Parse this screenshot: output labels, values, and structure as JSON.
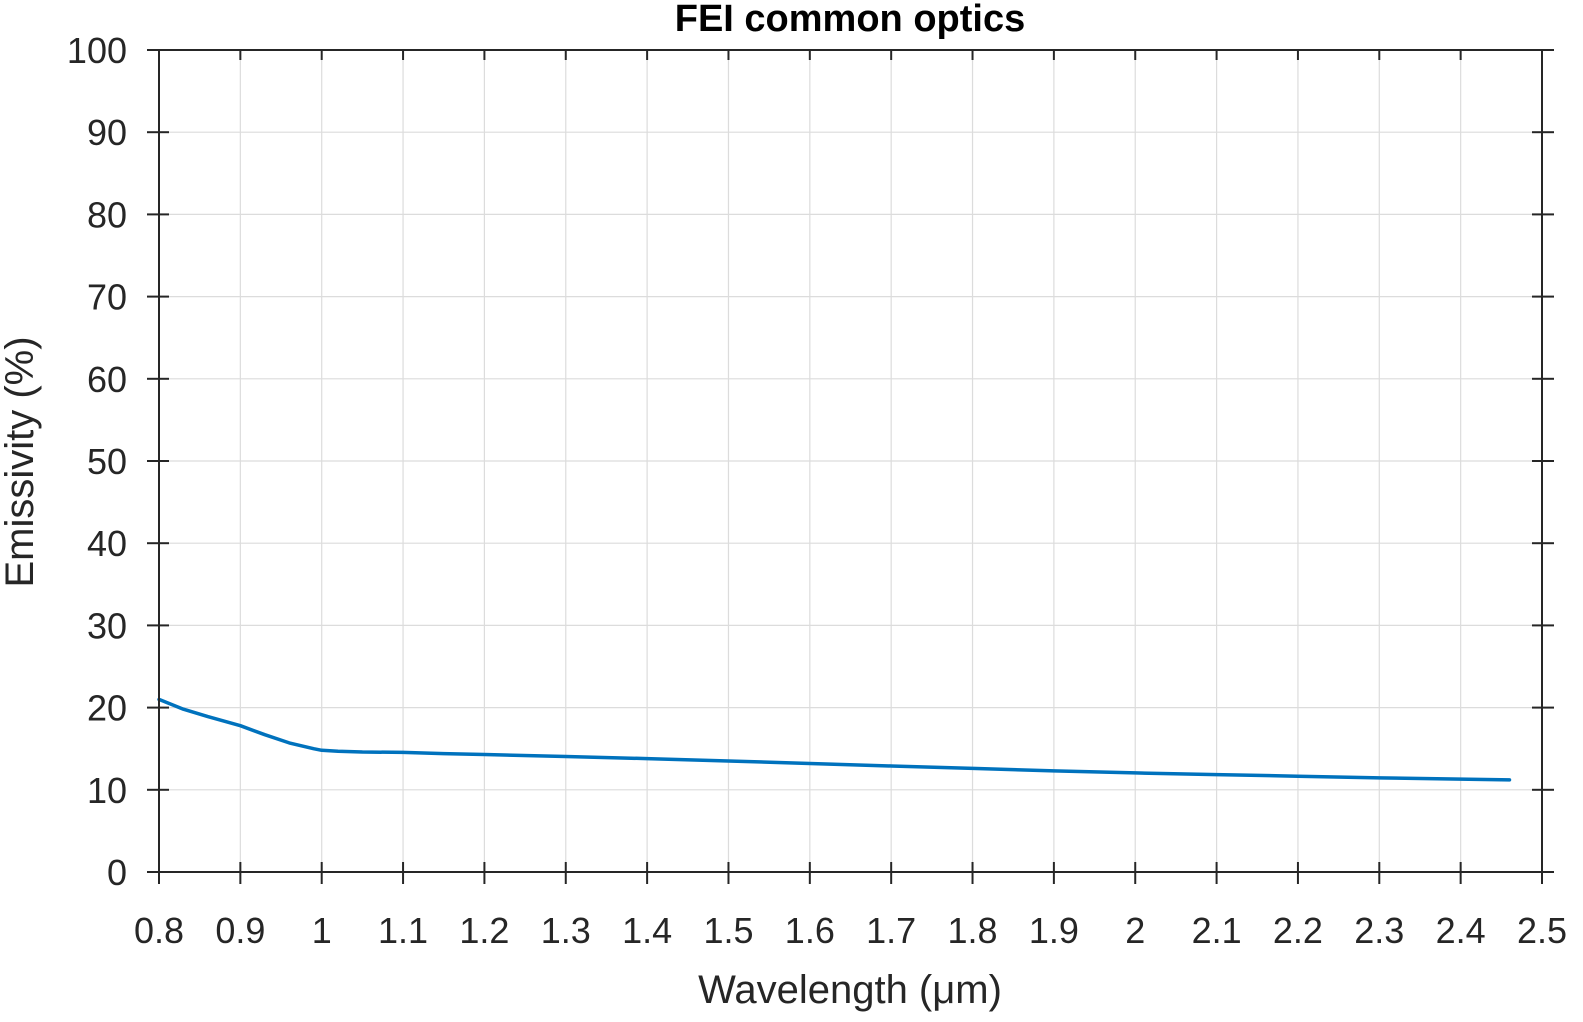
{
  "chart_data": {
    "type": "line",
    "title": "FEI common optics",
    "xlabel": "Wavelength (μm)",
    "ylabel": "Emissivity (%)",
    "xlim": [
      0.8,
      2.5
    ],
    "ylim": [
      0,
      100
    ],
    "xticks": [
      0.8,
      0.9,
      1,
      1.1,
      1.2,
      1.3,
      1.4,
      1.5,
      1.6,
      1.7,
      1.8,
      1.9,
      2,
      2.1,
      2.2,
      2.3,
      2.4,
      2.5
    ],
    "xtick_labels": [
      "0.8",
      "0.9",
      "1",
      "1.1",
      "1.2",
      "1.3",
      "1.4",
      "1.5",
      "1.6",
      "1.7",
      "1.8",
      "1.9",
      "2",
      "2.1",
      "2.2",
      "2.3",
      "2.4",
      "2.5"
    ],
    "yticks": [
      0,
      10,
      20,
      30,
      40,
      50,
      60,
      70,
      80,
      90,
      100
    ],
    "ytick_labels": [
      "0",
      "10",
      "20",
      "30",
      "40",
      "50",
      "60",
      "70",
      "80",
      "90",
      "100"
    ],
    "grid": true,
    "series": [
      {
        "color": "#0072BD",
        "x": [
          0.8,
          0.83,
          0.86,
          0.9,
          0.93,
          0.96,
          0.99,
          1.0,
          1.02,
          1.05,
          1.1,
          1.15,
          1.2,
          1.3,
          1.4,
          1.5,
          1.6,
          1.7,
          1.8,
          1.9,
          2.0,
          2.1,
          2.2,
          2.3,
          2.4,
          2.46
        ],
        "y": [
          21.0,
          19.8,
          18.9,
          17.8,
          16.7,
          15.7,
          15.0,
          14.8,
          14.7,
          14.6,
          14.55,
          14.4,
          14.3,
          14.05,
          13.8,
          13.5,
          13.2,
          12.9,
          12.6,
          12.3,
          12.05,
          11.85,
          11.65,
          11.45,
          11.3,
          11.2
        ]
      }
    ]
  }
}
